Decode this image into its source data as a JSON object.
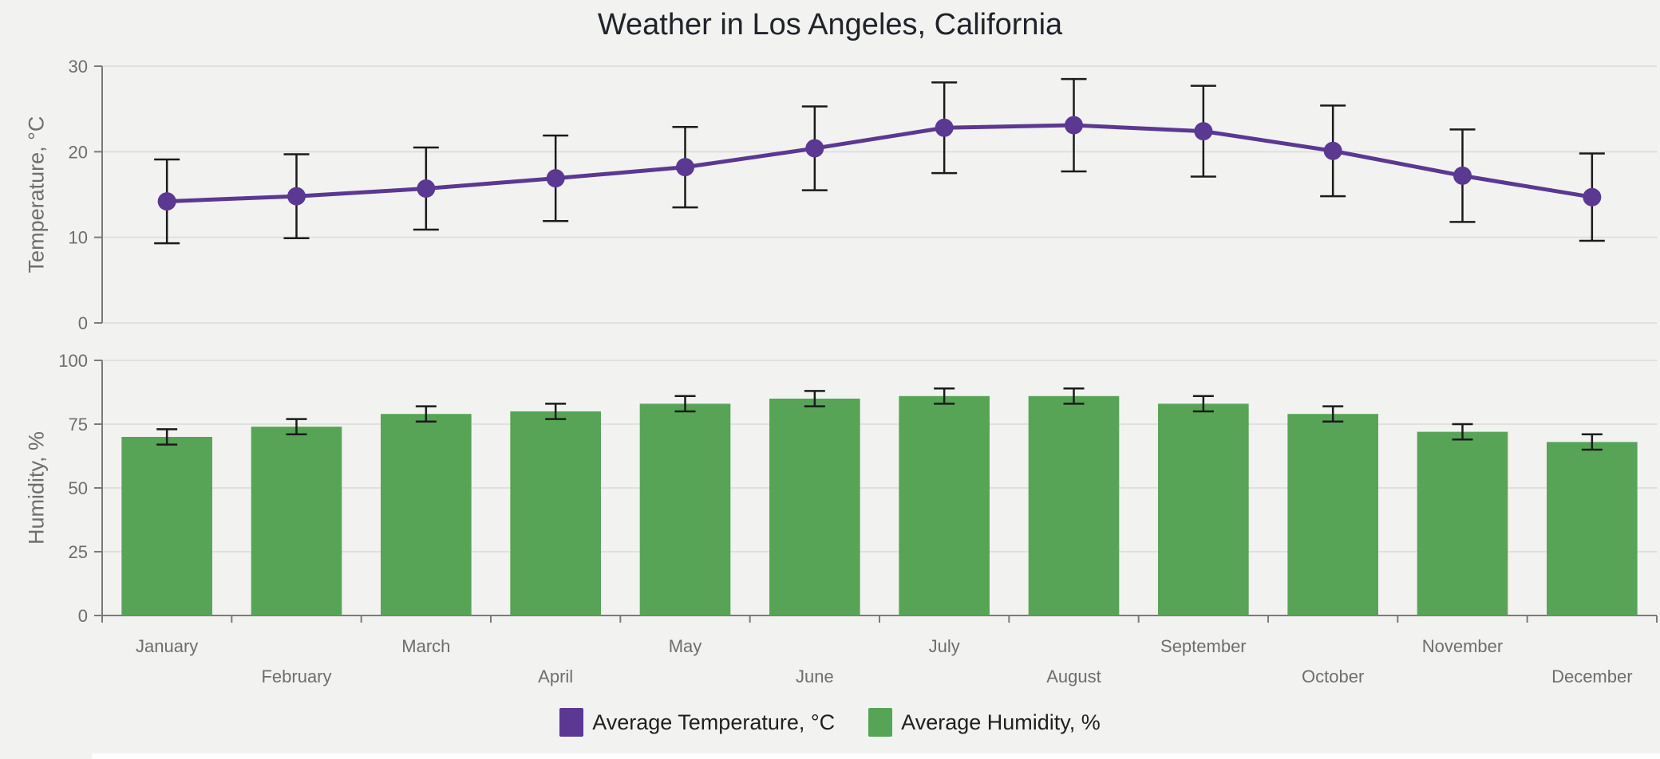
{
  "title": "Weather in Los Angeles, California",
  "colors": {
    "background": "#f2f2f0",
    "temperature": "#5B3892",
    "humidity": "#57A456",
    "error_bar": "#1b1b1b",
    "grid": "#e0e0de",
    "axis": "#7b7b7b",
    "tick_label": "#6e6e6e",
    "title_text": "#20232a"
  },
  "chart_data": [
    {
      "type": "line",
      "title": "Weather in Los Angeles, California",
      "ylabel": "Temperature, °C",
      "ylim": [
        0,
        30
      ],
      "yticks": [
        0,
        10,
        20,
        30
      ],
      "grid": true,
      "legend_position": "bottom",
      "marker": "circle",
      "categories": [
        "January",
        "February",
        "March",
        "April",
        "May",
        "June",
        "July",
        "August",
        "September",
        "October",
        "November",
        "December"
      ],
      "series": [
        {
          "name": "Average Temperature, °C",
          "values": [
            14.2,
            14.8,
            15.7,
            16.9,
            18.2,
            20.4,
            22.8,
            23.1,
            22.4,
            20.1,
            17.2,
            14.7
          ],
          "errors": [
            4.9,
            4.9,
            4.8,
            5.0,
            4.7,
            4.9,
            5.3,
            5.4,
            5.3,
            5.3,
            5.4,
            5.1
          ]
        }
      ]
    },
    {
      "type": "bar",
      "title": "",
      "ylabel": "Humidity, %",
      "ylim": [
        0,
        100
      ],
      "yticks": [
        0,
        25,
        50,
        75,
        100
      ],
      "grid": true,
      "legend_position": "bottom",
      "categories": [
        "January",
        "February",
        "March",
        "April",
        "May",
        "June",
        "July",
        "August",
        "September",
        "October",
        "November",
        "December"
      ],
      "series": [
        {
          "name": "Average Humidity, %",
          "values": [
            70,
            74,
            79,
            80,
            83,
            85,
            86,
            86,
            83,
            79,
            72,
            68
          ],
          "errors": [
            3,
            3,
            3,
            3,
            3,
            3,
            3,
            3,
            3,
            3,
            3,
            3
          ]
        }
      ]
    }
  ],
  "legend": [
    {
      "label": "Average Temperature, °C",
      "color": "#5B3892"
    },
    {
      "label": "Average Humidity, %",
      "color": "#57A456"
    }
  ]
}
